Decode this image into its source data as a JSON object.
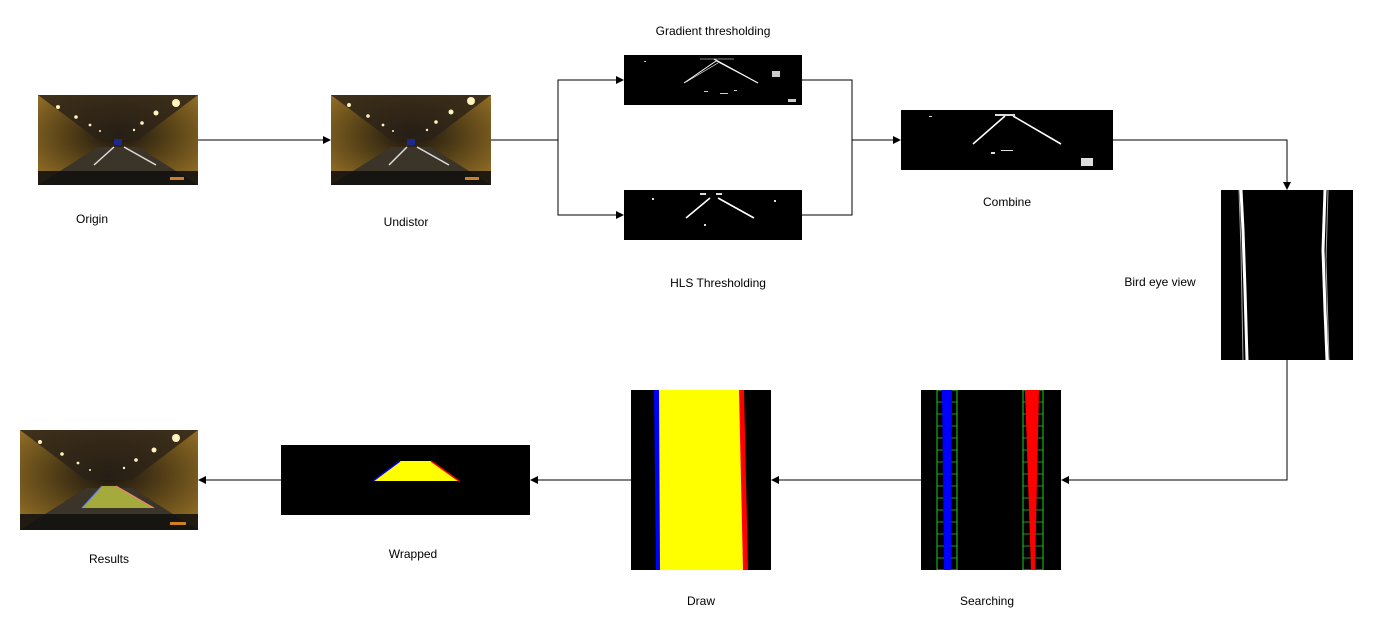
{
  "diagram": {
    "nodes": [
      {
        "id": "origin",
        "label": "Origin"
      },
      {
        "id": "undistort",
        "label": "Undistor"
      },
      {
        "id": "gradient",
        "label": "Gradient thresholding"
      },
      {
        "id": "hls",
        "label": "HLS Thresholding"
      },
      {
        "id": "combine",
        "label": "Combine"
      },
      {
        "id": "birdeye",
        "label": "Bird eye view"
      },
      {
        "id": "searching",
        "label": "Searching"
      },
      {
        "id": "draw",
        "label": "Draw"
      },
      {
        "id": "wrapped",
        "label": "Wrapped"
      },
      {
        "id": "results",
        "label": "Results"
      }
    ],
    "edges": [
      {
        "from": "origin",
        "to": "undistort"
      },
      {
        "from": "undistort",
        "to": "gradient"
      },
      {
        "from": "undistort",
        "to": "hls"
      },
      {
        "from": "gradient",
        "to": "combine"
      },
      {
        "from": "hls",
        "to": "combine"
      },
      {
        "from": "combine",
        "to": "birdeye"
      },
      {
        "from": "birdeye",
        "to": "searching"
      },
      {
        "from": "searching",
        "to": "draw"
      },
      {
        "from": "draw",
        "to": "wrapped"
      },
      {
        "from": "wrapped",
        "to": "results"
      }
    ]
  },
  "colors": {
    "edge": "#000000",
    "tunnel_light": "#8a6a25",
    "lane_left": "#0000ff",
    "lane_right": "#ff0000",
    "lane_fill": "#ffff00",
    "search_window": "#22cc22",
    "binary_bg": "#000000"
  }
}
